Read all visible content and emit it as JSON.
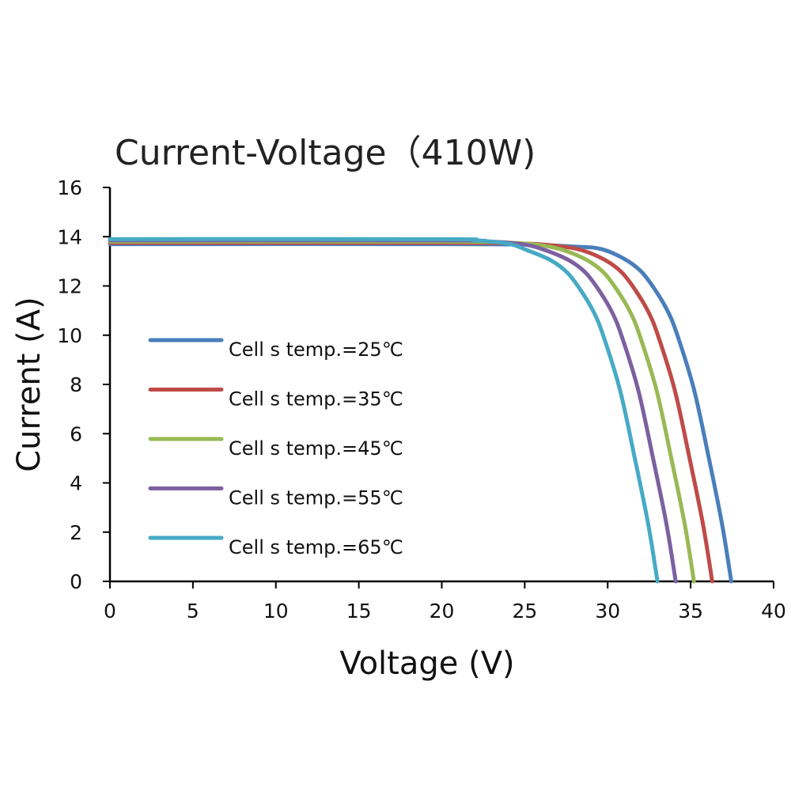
{
  "chart_data": {
    "type": "line",
    "title": "Current-Voltage（410W)",
    "xlabel": "Voltage (V)",
    "ylabel": "Current (A)",
    "xlim": [
      0,
      40
    ],
    "ylim": [
      0,
      16
    ],
    "xticks": [
      "0",
      "5",
      "10",
      "15",
      "20",
      "25",
      "30",
      "35",
      "40"
    ],
    "yticks": [
      "0",
      "2",
      "4",
      "6",
      "8",
      "10",
      "12",
      "14",
      "16"
    ],
    "grid": false,
    "legend_position": "left",
    "series": [
      {
        "name": "Cell s temp.=25℃",
        "color": "#4a7ebb",
        "points": [
          [
            0,
            13.7
          ],
          [
            20,
            13.7
          ],
          [
            25,
            13.68
          ],
          [
            28,
            13.6
          ],
          [
            29.6,
            13.5
          ],
          [
            31,
            13.1
          ],
          [
            32,
            12.6
          ],
          [
            32.8,
            11.9
          ],
          [
            33.6,
            11.0
          ],
          [
            34.2,
            10.0
          ],
          [
            35.2,
            7.8
          ],
          [
            36.1,
            5.0
          ],
          [
            36.9,
            2.3
          ],
          [
            37.45,
            0
          ]
        ]
      },
      {
        "name": "Cell s temp.=35℃",
        "color": "#be4b48",
        "points": [
          [
            0,
            13.75
          ],
          [
            20,
            13.75
          ],
          [
            25,
            13.72
          ],
          [
            27,
            13.62
          ],
          [
            28.45,
            13.45
          ],
          [
            29.85,
            13.05
          ],
          [
            30.85,
            12.55
          ],
          [
            31.65,
            11.85
          ],
          [
            32.45,
            10.95
          ],
          [
            33.05,
            9.95
          ],
          [
            34.05,
            7.75
          ],
          [
            34.95,
            4.95
          ],
          [
            35.75,
            2.3
          ],
          [
            36.3,
            0
          ]
        ]
      },
      {
        "name": "Cell s temp.=45℃",
        "color": "#98b954",
        "points": [
          [
            0,
            13.8
          ],
          [
            20,
            13.8
          ],
          [
            24,
            13.76
          ],
          [
            26,
            13.65
          ],
          [
            27.35,
            13.45
          ],
          [
            28.75,
            13.05
          ],
          [
            29.75,
            12.55
          ],
          [
            30.55,
            11.85
          ],
          [
            31.35,
            10.95
          ],
          [
            31.95,
            9.95
          ],
          [
            32.95,
            7.75
          ],
          [
            33.85,
            4.95
          ],
          [
            34.65,
            2.3
          ],
          [
            35.2,
            0
          ]
        ]
      },
      {
        "name": "Cell s temp.=55℃",
        "color": "#7d60a0",
        "points": [
          [
            0,
            13.85
          ],
          [
            20,
            13.85
          ],
          [
            23,
            13.8
          ],
          [
            25,
            13.68
          ],
          [
            26.25,
            13.45
          ],
          [
            27.65,
            13.05
          ],
          [
            28.65,
            12.55
          ],
          [
            29.45,
            11.85
          ],
          [
            30.25,
            10.95
          ],
          [
            30.85,
            9.95
          ],
          [
            31.85,
            7.75
          ],
          [
            32.75,
            4.95
          ],
          [
            33.55,
            2.3
          ],
          [
            34.1,
            0
          ]
        ]
      },
      {
        "name": "Cell s temp.=65℃",
        "color": "#46aac5",
        "points": [
          [
            0,
            13.9
          ],
          [
            20,
            13.9
          ],
          [
            22,
            13.85
          ],
          [
            24,
            13.72
          ],
          [
            25.15,
            13.45
          ],
          [
            26.55,
            13.05
          ],
          [
            27.55,
            12.55
          ],
          [
            28.35,
            11.85
          ],
          [
            29.15,
            10.95
          ],
          [
            29.75,
            9.95
          ],
          [
            30.75,
            7.75
          ],
          [
            31.65,
            4.95
          ],
          [
            32.45,
            2.3
          ],
          [
            33.0,
            0
          ]
        ]
      }
    ]
  }
}
